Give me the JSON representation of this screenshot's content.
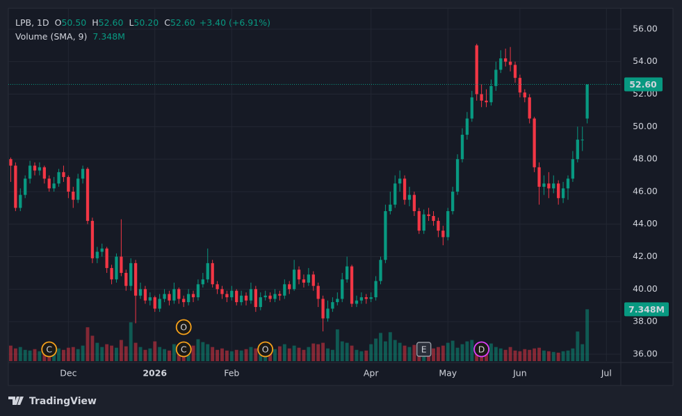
{
  "chart_data": {
    "type": "candlestick",
    "legend": {
      "symbol": "LPB, 1D",
      "items": [
        {
          "key": "O",
          "value": "50.50"
        },
        {
          "key": "H",
          "value": "52.60"
        },
        {
          "key": "L",
          "value": "50.20"
        },
        {
          "key": "C",
          "value": "52.60"
        }
      ],
      "change": "+3.40 (+6.91%)",
      "volume_name": "Volume (SMA, 9)",
      "volume_value": "7.348M"
    },
    "open": [
      48.0,
      47.6,
      45.0,
      45.8,
      46.8,
      47.6,
      47.3,
      47.5,
      46.8,
      46.2,
      46.5,
      47.2,
      46.9,
      46.0,
      45.5,
      46.8,
      47.4,
      44.2,
      41.9,
      42.3,
      42.5,
      41.3,
      40.6,
      42.0,
      41.0,
      40.2,
      41.6,
      39.6,
      40.0,
      39.3,
      39.5,
      38.8,
      39.4,
      39.7,
      39.3,
      40.0,
      39.4,
      39.2,
      39.7,
      39.5,
      40.3,
      40.6,
      41.6,
      40.3,
      40.0,
      39.7,
      39.5,
      39.9,
      39.2,
      39.6,
      39.3,
      40.0,
      38.9,
      39.5,
      39.6,
      39.4,
      39.7,
      39.6,
      40.3,
      40.0,
      41.2,
      40.6,
      40.4,
      40.9,
      40.2,
      39.4,
      38.2,
      38.8,
      39.2,
      39.4,
      40.6,
      41.4,
      39.1,
      39.3,
      39.5,
      39.4,
      39.5,
      40.5,
      41.8,
      44.8,
      45.2,
      46.5,
      46.8,
      45.5,
      45.8,
      44.8,
      43.6,
      44.6,
      44.5,
      44.2,
      43.6,
      43.2,
      44.8,
      46.0,
      48.0,
      49.5,
      50.5,
      55.0,
      52.0,
      51.6,
      51.5,
      52.5,
      53.5,
      54.2,
      54.0,
      53.8,
      53.0,
      52.1,
      51.8,
      50.5,
      47.5,
      46.3,
      46.5,
      46.2,
      46.5,
      45.6,
      46.2,
      46.8,
      48.0,
      49.2,
      50.5
    ],
    "high": [
      48.1,
      47.8,
      46.2,
      47.0,
      47.9,
      47.8,
      47.8,
      47.6,
      47.0,
      46.9,
      47.4,
      47.6,
      47.0,
      46.3,
      47.1,
      47.6,
      47.5,
      44.4,
      42.6,
      42.8,
      42.6,
      41.5,
      42.2,
      44.3,
      41.2,
      41.9,
      41.8,
      40.4,
      40.2,
      39.8,
      39.6,
      39.7,
      40.0,
      39.9,
      40.4,
      40.1,
      39.6,
      40.0,
      39.9,
      40.6,
      41.0,
      42.5,
      41.8,
      40.5,
      40.2,
      39.9,
      40.2,
      40.0,
      39.9,
      39.8,
      40.4,
      40.2,
      39.8,
      39.9,
      39.8,
      40.0,
      39.9,
      40.6,
      40.5,
      41.8,
      41.4,
      40.9,
      41.3,
      41.1,
      40.4,
      39.6,
      39.3,
      39.5,
      39.8,
      41.0,
      42.0,
      41.5,
      39.6,
      39.8,
      39.7,
      39.8,
      40.8,
      42.0,
      45.2,
      46.0,
      47.0,
      47.3,
      47.0,
      46.3,
      46.0,
      45.0,
      44.9,
      45.0,
      44.8,
      44.4,
      43.9,
      45.0,
      46.3,
      48.3,
      49.9,
      50.9,
      52.2,
      55.1,
      52.6,
      52.3,
      52.9,
      54.0,
      54.7,
      54.8,
      54.9,
      54.0,
      53.2,
      52.3,
      52.0,
      50.6,
      47.8,
      47.0,
      47.2,
      47.0,
      46.7,
      46.6,
      47.0,
      48.5,
      50.0,
      50.0,
      52.6
    ],
    "low": [
      46.6,
      44.8,
      44.8,
      45.6,
      46.5,
      47.0,
      47.0,
      46.5,
      46.0,
      46.0,
      46.3,
      46.6,
      45.6,
      45.0,
      45.3,
      46.5,
      44.0,
      41.6,
      41.6,
      42.0,
      41.0,
      40.3,
      40.4,
      40.8,
      39.9,
      39.9,
      37.9,
      39.4,
      39.1,
      39.0,
      38.6,
      38.6,
      39.2,
      39.0,
      39.1,
      39.1,
      38.9,
      39.0,
      39.2,
      39.3,
      40.1,
      40.4,
      40.1,
      39.7,
      39.4,
      39.2,
      39.3,
      39.0,
      39.0,
      39.0,
      39.1,
      38.6,
      38.7,
      39.3,
      39.2,
      39.2,
      39.3,
      39.4,
      39.7,
      39.9,
      40.3,
      40.1,
      40.2,
      39.9,
      38.9,
      37.4,
      38.0,
      38.6,
      39.0,
      39.2,
      40.4,
      38.9,
      38.9,
      39.1,
      39.1,
      39.2,
      39.3,
      40.3,
      41.6,
      44.6,
      45.0,
      46.0,
      45.2,
      45.1,
      44.5,
      43.4,
      43.4,
      44.2,
      43.9,
      43.2,
      42.7,
      43.0,
      44.6,
      45.8,
      47.8,
      49.2,
      50.3,
      51.6,
      51.2,
      51.2,
      51.3,
      52.2,
      53.3,
      53.7,
      53.4,
      52.7,
      51.8,
      51.5,
      50.2,
      47.2,
      45.2,
      45.8,
      45.6,
      45.9,
      45.2,
      45.3,
      45.5,
      46.6,
      47.8,
      48.5,
      50.2
    ],
    "close": [
      47.6,
      45.0,
      45.8,
      46.8,
      47.6,
      47.3,
      47.5,
      46.8,
      46.2,
      46.5,
      47.2,
      46.9,
      46.0,
      45.5,
      46.8,
      47.4,
      44.2,
      41.9,
      42.3,
      42.5,
      41.3,
      40.6,
      42.0,
      41.0,
      40.2,
      41.6,
      39.6,
      40.0,
      39.3,
      39.5,
      38.8,
      39.4,
      39.7,
      39.3,
      40.0,
      39.4,
      39.2,
      39.7,
      39.5,
      40.3,
      40.6,
      41.6,
      40.3,
      40.0,
      39.7,
      39.5,
      39.9,
      39.2,
      39.6,
      39.3,
      40.0,
      38.9,
      39.5,
      39.6,
      39.4,
      39.7,
      39.6,
      40.3,
      40.0,
      41.2,
      40.6,
      40.4,
      40.9,
      40.2,
      39.4,
      38.2,
      38.8,
      39.2,
      39.4,
      40.6,
      41.4,
      39.1,
      39.3,
      39.5,
      39.4,
      39.5,
      40.5,
      41.8,
      44.8,
      45.2,
      46.5,
      46.8,
      45.5,
      45.8,
      44.8,
      43.6,
      44.6,
      44.5,
      44.2,
      43.6,
      43.2,
      44.8,
      46.0,
      48.0,
      49.5,
      50.5,
      51.8,
      52.0,
      51.6,
      51.5,
      52.5,
      53.5,
      54.2,
      54.0,
      53.8,
      53.0,
      52.1,
      51.8,
      50.5,
      47.5,
      46.3,
      46.5,
      46.2,
      46.5,
      45.6,
      46.2,
      46.8,
      48.0,
      49.2,
      49.2,
      52.6
    ],
    "volume": [
      2.2,
      1.8,
      2.0,
      1.6,
      1.5,
      1.7,
      1.4,
      1.6,
      1.3,
      1.5,
      1.8,
      1.6,
      1.9,
      2.0,
      1.7,
      2.2,
      4.8,
      3.6,
      2.6,
      2.0,
      2.4,
      2.2,
      1.9,
      3.0,
      2.1,
      5.5,
      2.6,
      2.0,
      1.6,
      1.8,
      2.8,
      2.0,
      1.7,
      1.5,
      2.4,
      1.9,
      1.6,
      1.8,
      2.2,
      3.1,
      2.7,
      2.4,
      2.0,
      1.6,
      1.8,
      1.5,
      1.4,
      1.6,
      1.5,
      1.7,
      2.0,
      1.8,
      1.6,
      1.4,
      1.5,
      1.7,
      2.1,
      2.4,
      1.8,
      2.2,
      1.9,
      1.6,
      2.0,
      2.5,
      2.4,
      2.6,
      1.8,
      1.6,
      4.5,
      2.8,
      2.6,
      2.2,
      1.6,
      1.4,
      1.5,
      2.4,
      3.2,
      4.0,
      2.8,
      4.1,
      3.0,
      2.6,
      2.2,
      2.0,
      2.3,
      1.9,
      2.1,
      2.4,
      1.8,
      2.0,
      2.2,
      2.6,
      2.9,
      1.9,
      2.4,
      2.8,
      3.0,
      2.2,
      2.6,
      2.1,
      2.5,
      2.0,
      1.8,
      1.6,
      2.0,
      1.5,
      1.4,
      1.7,
      1.6,
      1.8,
      1.9,
      1.5,
      1.4,
      1.3,
      1.2,
      1.4,
      1.5,
      1.8,
      4.2,
      2.4,
      7.348
    ],
    "up_color": "#089981",
    "down_color": "#f23645",
    "xlim": [
      -0.5,
      127
    ],
    "xticks": [
      {
        "value": 12,
        "label": "Dec"
      },
      {
        "value": 30,
        "label": "2026"
      },
      {
        "value": 46,
        "label": "Feb"
      },
      {
        "value": 75,
        "label": "Apr"
      },
      {
        "value": 91,
        "label": "May"
      },
      {
        "value": 106,
        "label": "Jun"
      },
      {
        "value": 124,
        "label": "Jul"
      }
    ],
    "ylim": [
      35.57,
      57.28
    ],
    "yticks": [
      {
        "value": 36,
        "label": "36.00"
      },
      {
        "value": 38,
        "label": "38.00"
      },
      {
        "value": 40,
        "label": "40.00"
      },
      {
        "value": 42,
        "label": "42.00"
      },
      {
        "value": 44,
        "label": "44.00"
      },
      {
        "value": 46,
        "label": "46.00"
      },
      {
        "value": 48,
        "label": "48.00"
      },
      {
        "value": 50,
        "label": "50.00"
      },
      {
        "value": 52,
        "label": "52.00"
      },
      {
        "value": 54,
        "label": "54.00"
      },
      {
        "value": 56,
        "label": "56.00"
      }
    ],
    "volume_lim": [
      0,
      50
    ],
    "last_price": {
      "value": 52.6,
      "label": "52.60"
    },
    "events": [
      {
        "label": "C",
        "x": 8,
        "color": "#f7a21b"
      },
      {
        "label": "C",
        "x": 36,
        "color": "#f7a21b"
      },
      {
        "label": "O",
        "x": 36,
        "color": "#f7a21b"
      },
      {
        "label": "O",
        "x": 53,
        "color": "#f7a21b"
      },
      {
        "label": "E",
        "x": 86,
        "color": "#9598a1"
      },
      {
        "label": "D",
        "x": 98,
        "color": "#e040fb"
      }
    ],
    "grid": true
  },
  "footer": {
    "brand": "TradingView"
  }
}
